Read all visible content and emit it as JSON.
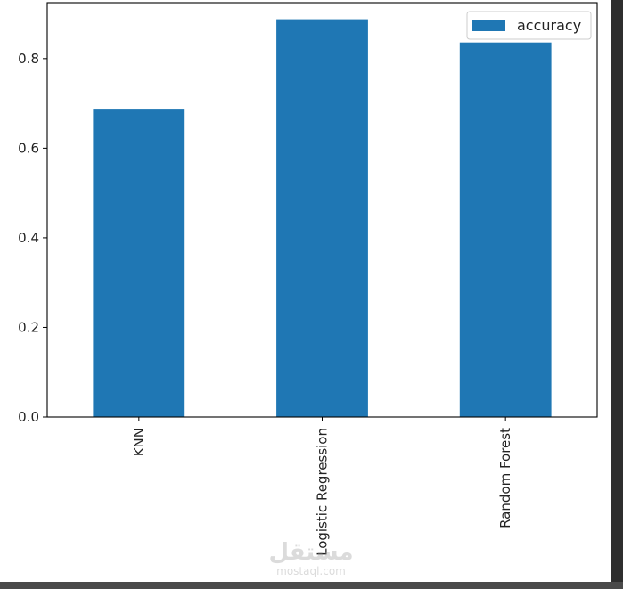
{
  "chart_data": {
    "type": "bar",
    "categories": [
      "KNN",
      "Logistic Regression",
      "Random Forest"
    ],
    "series": [
      {
        "name": "accuracy",
        "values": [
          0.688,
          0.888,
          0.836
        ]
      }
    ],
    "yticks": [
      "0.0",
      "0.2",
      "0.4",
      "0.6",
      "0.8"
    ],
    "ylim": [
      0,
      0.925
    ],
    "grid": false,
    "legend_position": "top-right",
    "bar_color": "#1f77b4"
  },
  "watermark": {
    "arabic": "مستقل",
    "latin": "mostaql.com"
  }
}
